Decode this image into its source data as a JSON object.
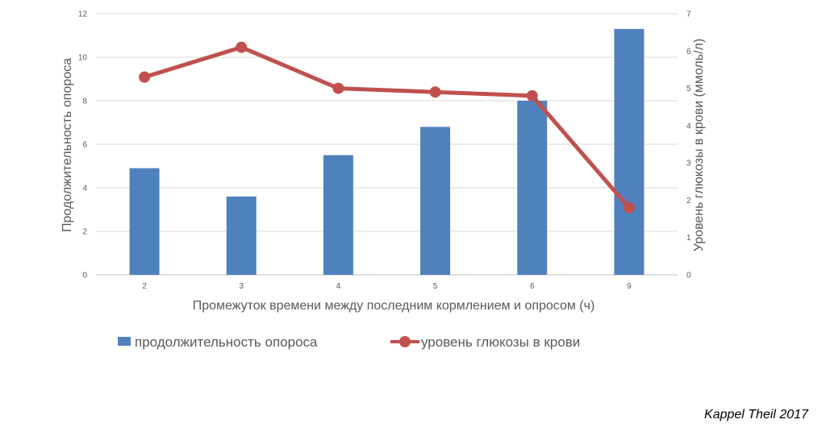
{
  "chart_data": {
    "type": "bar",
    "categories": [
      "2",
      "3",
      "4",
      "5",
      "6",
      "9"
    ],
    "series": [
      {
        "name": "продолжительность опороса",
        "type": "bar",
        "axis": "left",
        "color": "#4F81BD",
        "values": [
          4.9,
          3.6,
          5.5,
          6.8,
          8.0,
          11.3
        ]
      },
      {
        "name": "уровень глюкозы в крови",
        "type": "line",
        "axis": "right",
        "color": "#C0504D",
        "values": [
          5.3,
          6.1,
          5.0,
          4.9,
          4.8,
          1.8
        ]
      }
    ],
    "xlabel": "Промежуток времени между последним кормлением и опросом (ч)",
    "ylabel": "Продолжительность опороса",
    "y2label": "Уровень глюкозы в крови (ммоль/л)",
    "ylim": [
      0,
      12
    ],
    "yticks": [
      "0",
      "2",
      "4",
      "6",
      "8",
      "10",
      "12"
    ],
    "y2lim": [
      0,
      7
    ],
    "y2ticks": [
      "0",
      "1",
      "2",
      "3",
      "4",
      "5",
      "6",
      "7"
    ],
    "grid": true,
    "legend": "bottom"
  },
  "source": "Kappel Theil 2017"
}
